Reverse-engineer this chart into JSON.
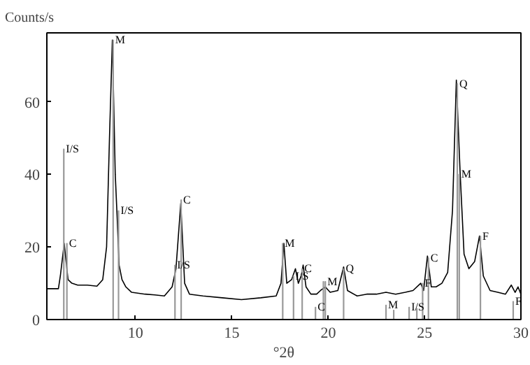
{
  "chart_data": {
    "type": "line",
    "xlabel": "°2θ",
    "ylabel": "Counts/s",
    "xlim": [
      5.4,
      30
    ],
    "ylim": [
      0,
      79
    ],
    "xticks": [
      10,
      15,
      20,
      25,
      30
    ],
    "yticks": [
      0,
      20,
      40,
      60
    ],
    "grid": false,
    "marker": "none",
    "line_style": "solid",
    "series": [
      {
        "color": "#000000",
        "x": [
          5.4,
          6.0,
          6.1,
          6.3,
          6.5,
          6.7,
          7.0,
          7.5,
          8.0,
          8.3,
          8.5,
          8.65,
          8.8,
          8.95,
          9.05,
          9.15,
          9.3,
          9.5,
          9.8,
          10.5,
          11.0,
          11.5,
          11.9,
          12.1,
          12.35,
          12.55,
          12.8,
          13.5,
          14.5,
          15.5,
          16.5,
          17.3,
          17.55,
          17.7,
          17.85,
          18.1,
          18.3,
          18.45,
          18.6,
          18.7,
          18.85,
          19.1,
          19.4,
          19.6,
          19.85,
          20.1,
          20.5,
          20.8,
          21.0,
          21.5,
          22.0,
          22.5,
          23.0,
          23.5,
          24.0,
          24.4,
          24.8,
          24.95,
          25.15,
          25.35,
          25.6,
          25.9,
          26.2,
          26.45,
          26.65,
          26.85,
          27.05,
          27.3,
          27.6,
          27.85,
          28.05,
          28.4,
          28.8,
          29.2,
          29.5,
          29.7,
          29.85,
          30.0
        ],
        "values": [
          8.5,
          8.5,
          12,
          21,
          11,
          10,
          9.5,
          9.5,
          9.2,
          11,
          20,
          50,
          77,
          40,
          28,
          15,
          11,
          9,
          7.5,
          7,
          6.8,
          6.5,
          9,
          14,
          32,
          10,
          7,
          6.5,
          6,
          5.5,
          6,
          6.5,
          10,
          21,
          10,
          11,
          14,
          10,
          12,
          15,
          9,
          7,
          7,
          8,
          9,
          7.5,
          8,
          14.5,
          8,
          6.5,
          7,
          7,
          7.5,
          7,
          7.5,
          8,
          10,
          8,
          17.5,
          9,
          9,
          10,
          13,
          30,
          66,
          40,
          18,
          14,
          16,
          23,
          12,
          8,
          7.5,
          7,
          9.5,
          7.5,
          9,
          7
        ]
      },
      {
        "type": "bar",
        "color": "#999999",
        "x": [
          6.28,
          6.44,
          8.84,
          9.12,
          12.05,
          12.37,
          17.64,
          18.2,
          18.65,
          19.34,
          19.75,
          19.85,
          20.8,
          23.0,
          23.4,
          24.2,
          24.6,
          24.9,
          25.2,
          26.7,
          26.8,
          27.9,
          29.6
        ],
        "values": [
          47,
          21,
          77,
          30,
          15,
          33,
          21,
          12,
          14,
          3.4,
          10.5,
          10.5,
          14,
          4,
          2.6,
          3.4,
          3,
          10,
          17,
          65,
          40,
          23,
          5
        ]
      }
    ],
    "annotations": [
      {
        "text": "I/S",
        "x": 6.28,
        "y": 47
      },
      {
        "text": "C",
        "x": 6.44,
        "y": 21
      },
      {
        "text": "M",
        "x": 8.84,
        "y": 77
      },
      {
        "text": "I/S",
        "x": 9.12,
        "y": 30
      },
      {
        "text": "I/S",
        "x": 12.05,
        "y": 15
      },
      {
        "text": "C",
        "x": 12.37,
        "y": 33
      },
      {
        "text": "M",
        "x": 17.64,
        "y": 21
      },
      {
        "text": "I/S",
        "x": 18.2,
        "y": 12
      },
      {
        "text": "C",
        "x": 18.65,
        "y": 14
      },
      {
        "text": "C",
        "x": 19.34,
        "y": 3.4
      },
      {
        "text": "M",
        "x": 19.85,
        "y": 10.5
      },
      {
        "text": "Q",
        "x": 20.8,
        "y": 14
      },
      {
        "text": "M",
        "x": 23.0,
        "y": 4
      },
      {
        "text": "I/S",
        "x": 24.2,
        "y": 3.4
      },
      {
        "text": "F",
        "x": 24.9,
        "y": 10
      },
      {
        "text": "C",
        "x": 25.2,
        "y": 17
      },
      {
        "text": "Q",
        "x": 26.7,
        "y": 65
      },
      {
        "text": "M",
        "x": 26.8,
        "y": 40
      },
      {
        "text": "F",
        "x": 27.9,
        "y": 23
      },
      {
        "text": "F",
        "x": 29.6,
        "y": 5
      }
    ]
  }
}
